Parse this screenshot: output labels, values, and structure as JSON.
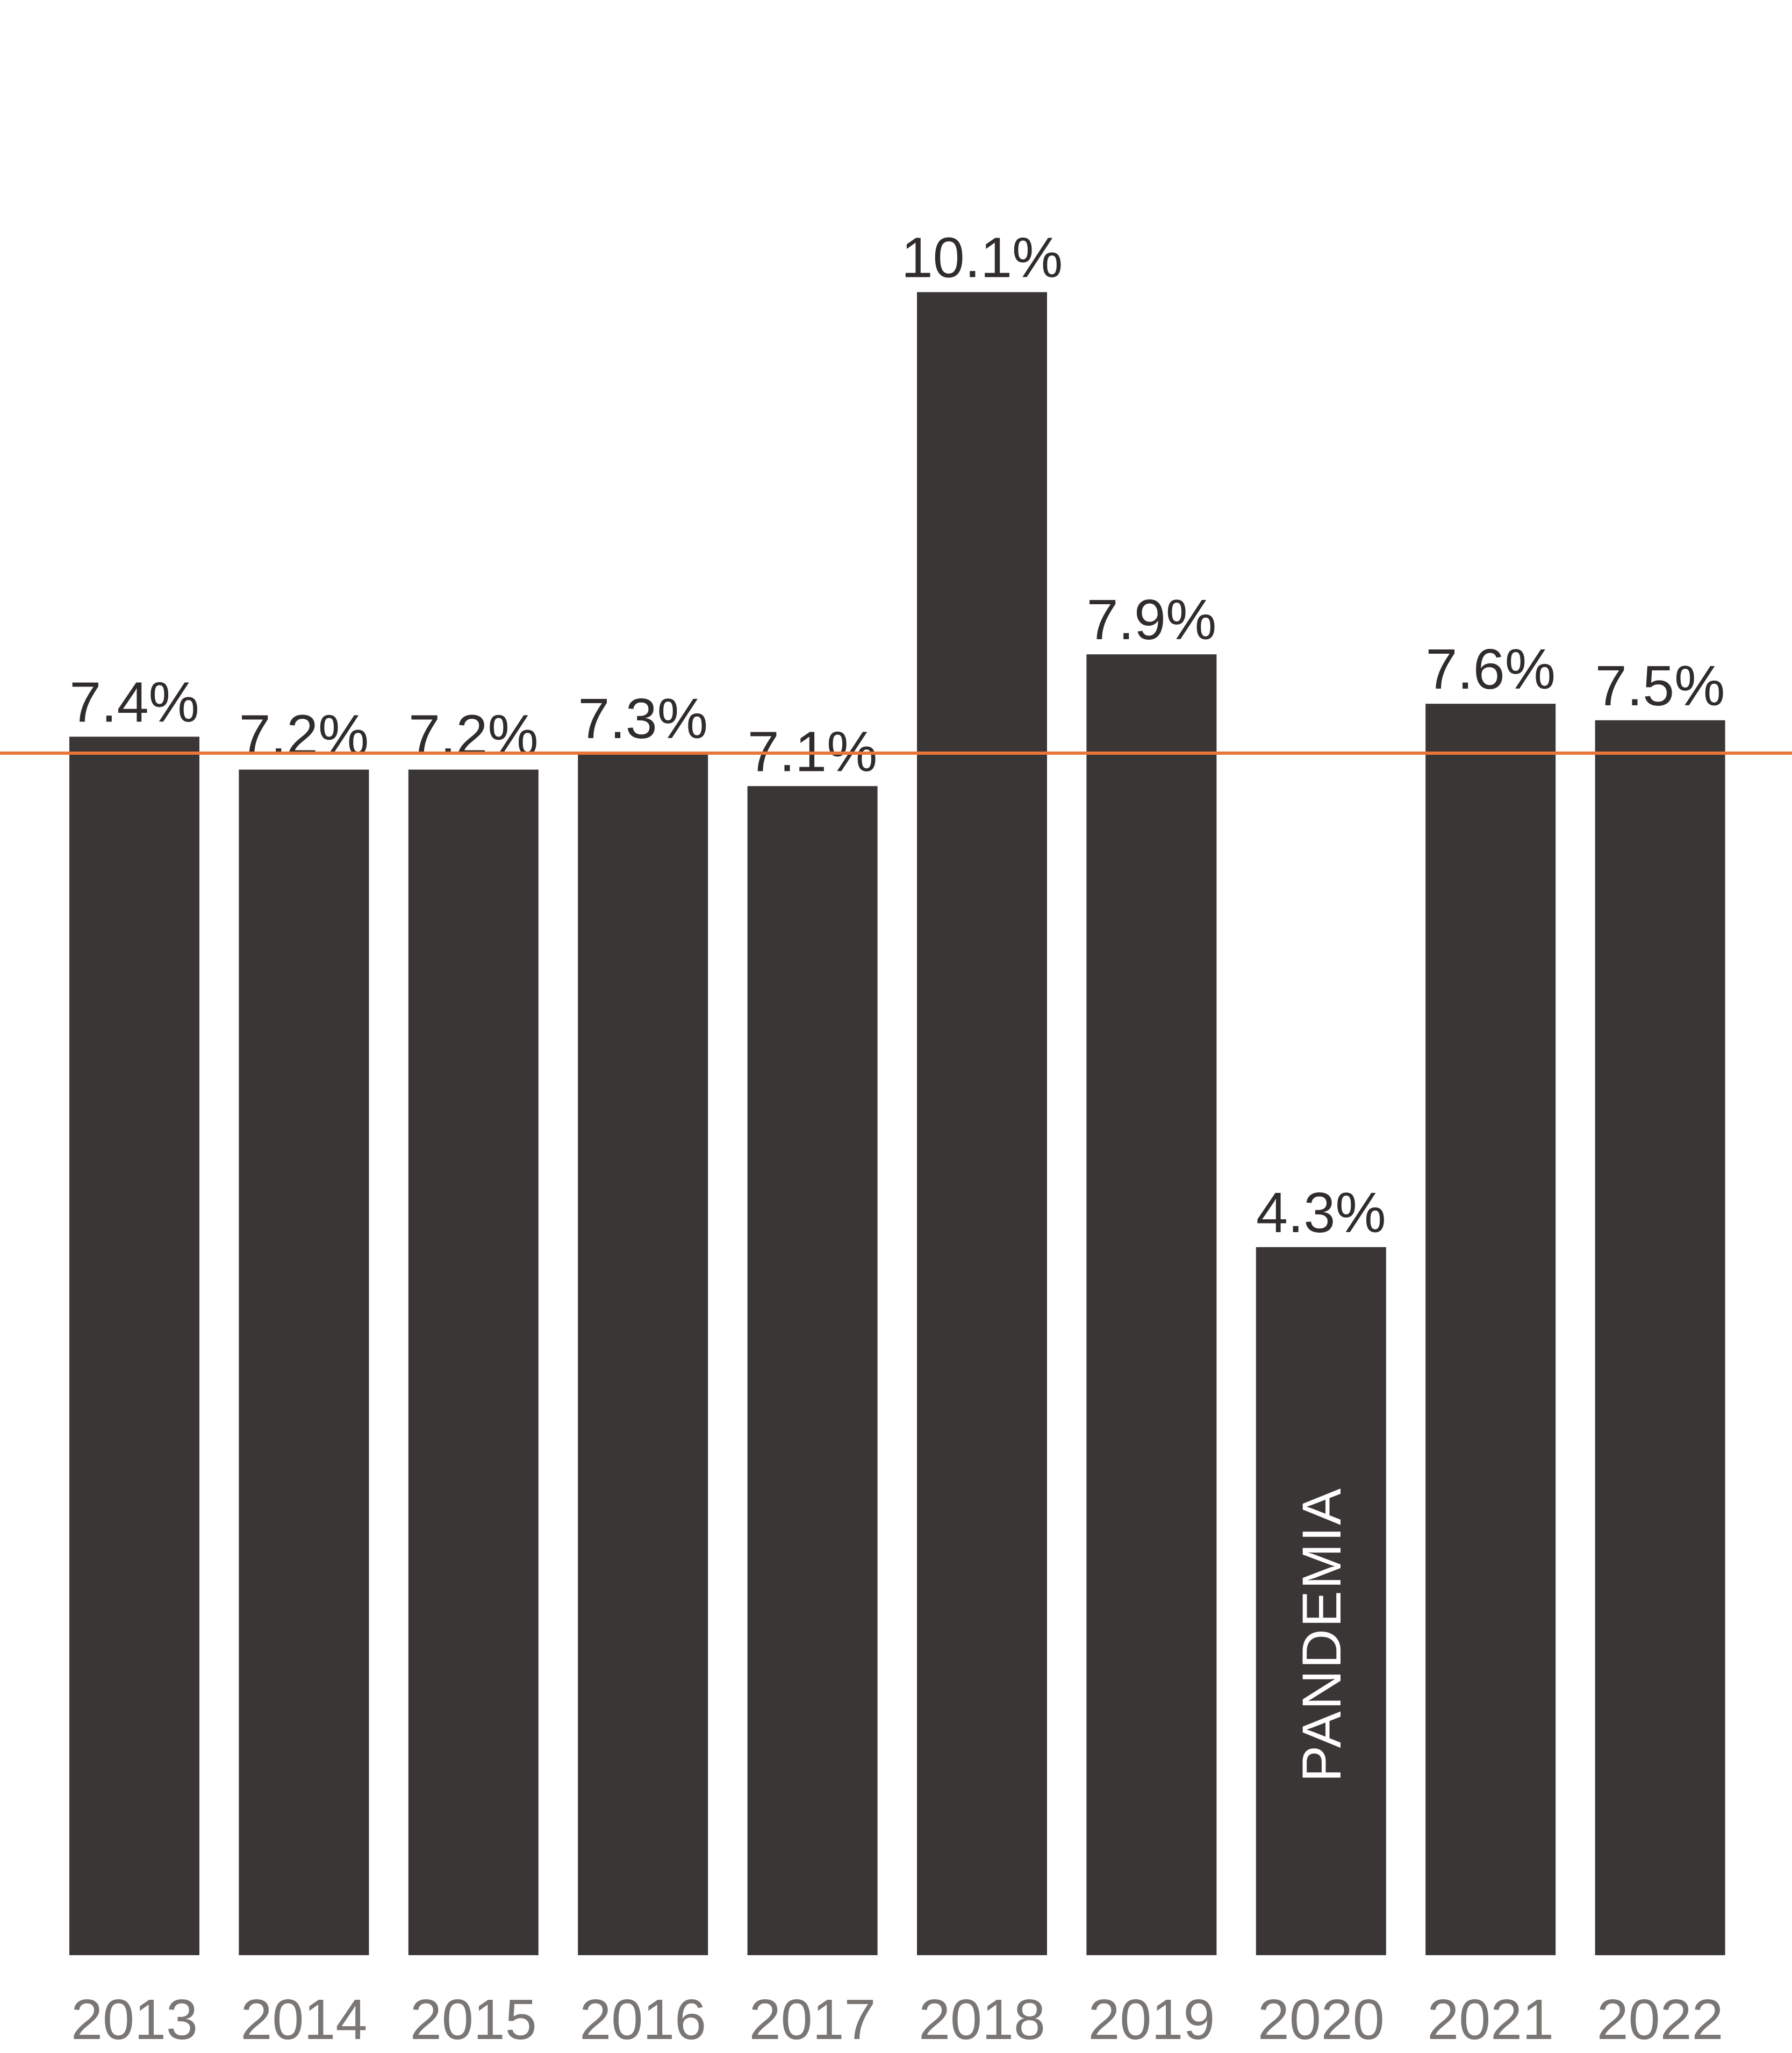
{
  "chart_data": {
    "type": "bar",
    "categories": [
      "2013",
      "2014",
      "2015",
      "2016",
      "2017",
      "2018",
      "2019",
      "2020",
      "2021",
      "2022"
    ],
    "values": [
      7.4,
      7.2,
      7.2,
      7.3,
      7.1,
      10.1,
      7.9,
      4.3,
      7.6,
      7.5
    ],
    "value_labels": [
      "7.4%",
      "7.2%",
      "7.2%",
      "7.3%",
      "7.1%",
      "10.1%",
      "7.9%",
      "4.3%",
      "7.6%",
      "7.5%"
    ],
    "reference_line": {
      "value": 7.3,
      "color": "#e8763a"
    },
    "annotations": [
      {
        "category": "2020",
        "text": "PANDEMIA",
        "orientation": "vertical"
      }
    ],
    "ylim": [
      0,
      11
    ],
    "grid": false,
    "colors": {
      "bar": "#3a3635",
      "value_text": "#2f2c2b",
      "tick_text": "#7a7674",
      "reference_line": "#e8763a",
      "annotation_text": "#ffffff"
    }
  }
}
